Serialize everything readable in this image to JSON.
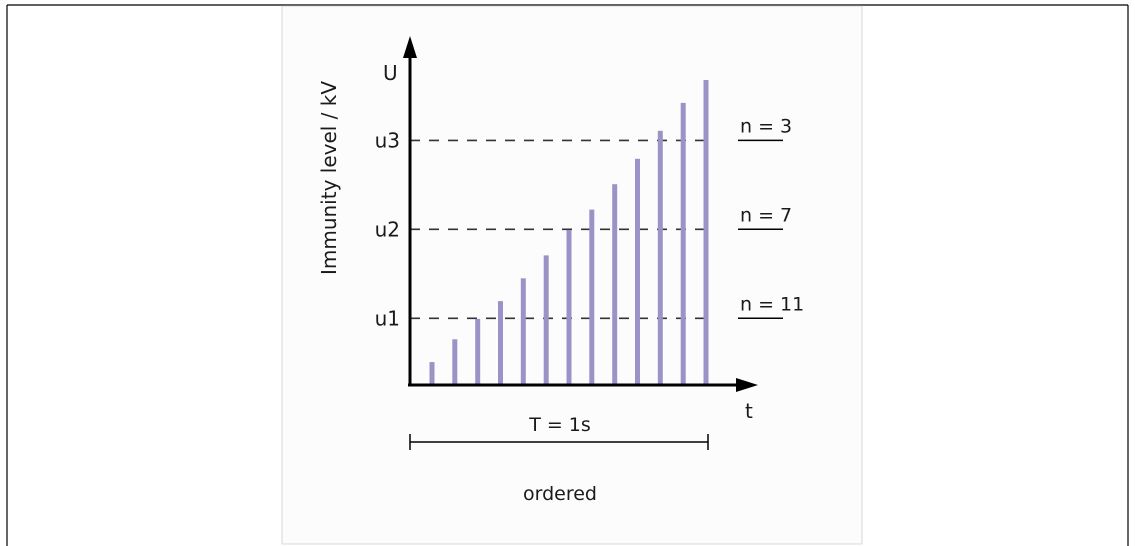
{
  "chart_data": {
    "type": "bar",
    "ylabel": "Immunity level / kV",
    "y_axis_symbol": "U",
    "x_axis_symbol": "t",
    "period_label": "T = 1s",
    "caption": "ordered",
    "bar_color": "#9b93c8",
    "values": [
      0.09,
      0.18,
      0.26,
      0.33,
      0.42,
      0.51,
      0.61,
      0.69,
      0.79,
      0.89,
      1.0,
      1.11,
      1.2
    ],
    "levels": [
      {
        "label": "u1",
        "value": 0.2625,
        "count_label": "n = 11"
      },
      {
        "label": "u2",
        "value": 0.6125,
        "count_label": "n = 7"
      },
      {
        "label": "u3",
        "value": 0.9625,
        "count_label": "n = 3"
      }
    ],
    "ylim": [
      0,
      1.2
    ]
  }
}
